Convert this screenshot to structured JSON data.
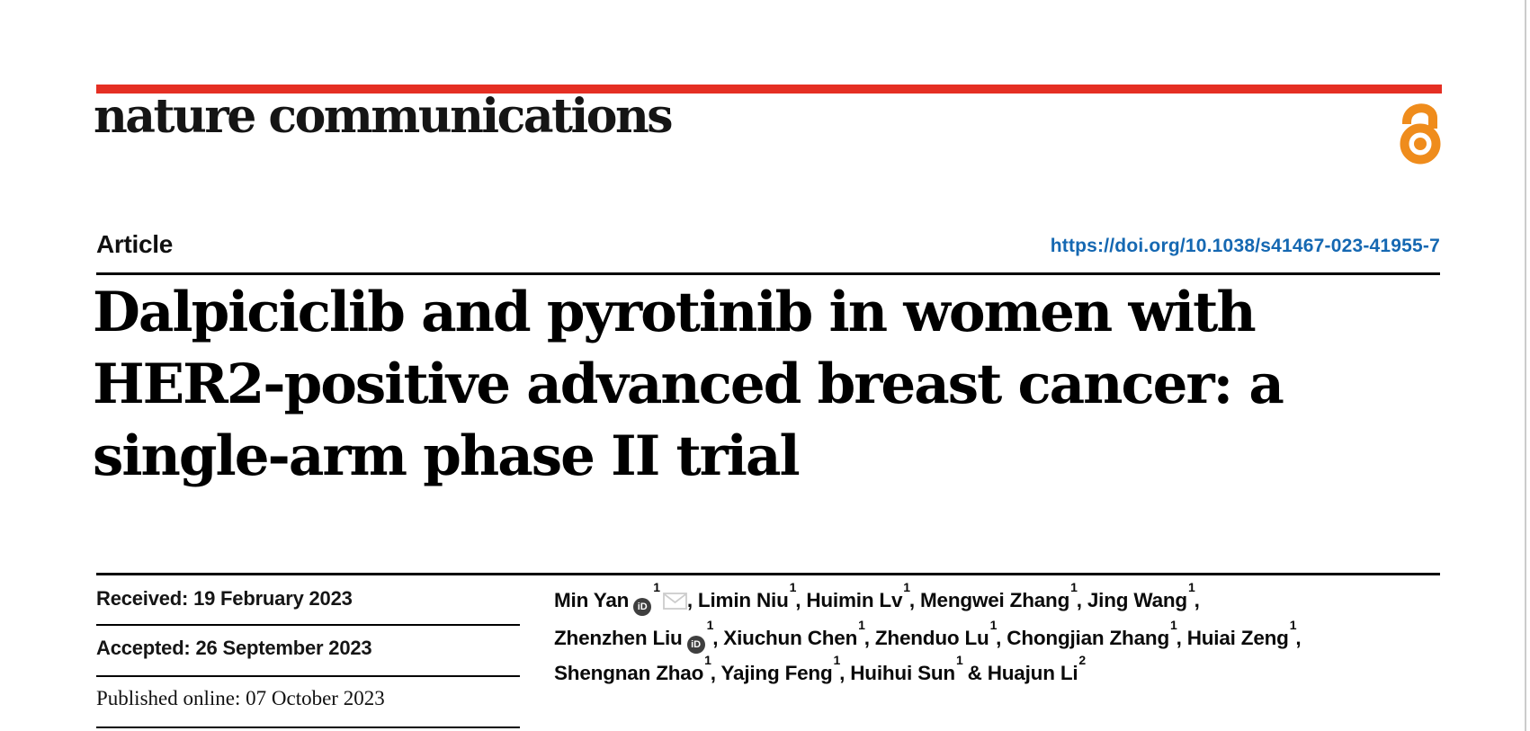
{
  "brand": {
    "journal_name": "nature communications",
    "red_bar_color": "#e52f23",
    "open_access_color": "#ef8c1c"
  },
  "header": {
    "article_type_label": "Article",
    "doi_link": "https://doi.org/10.1038/s41467-023-41955-7",
    "doi_color": "#1568b2"
  },
  "title": {
    "line1": "Dalpiciclib and pyrotinib in women with",
    "line2": "HER2-positive advanced breast cancer: a",
    "line3": "single-arm phase II trial"
  },
  "history": [
    {
      "label": "Received:",
      "date": "19 February 2023"
    },
    {
      "label": "Accepted:",
      "date": "26 September 2023"
    },
    {
      "label": "Published online:",
      "date": "07 October 2023"
    }
  ],
  "authors": {
    "separator": ", ",
    "last_separator": " & ",
    "orcid_icon_label": "iD",
    "list": [
      {
        "name": "Min Yan",
        "sup": "1",
        "orcid": true,
        "email": true
      },
      {
        "name": "Limin Niu",
        "sup": "1"
      },
      {
        "name": "Huimin Lv",
        "sup": "1"
      },
      {
        "name": "Mengwei Zhang",
        "sup": "1"
      },
      {
        "name": "Jing Wang",
        "sup": "1",
        "break_after": true
      },
      {
        "name": "Zhenzhen Liu",
        "sup": "1",
        "orcid": true
      },
      {
        "name": "Xiuchun Chen",
        "sup": "1"
      },
      {
        "name": "Zhenduo Lu",
        "sup": "1"
      },
      {
        "name": "Chongjian Zhang",
        "sup": "1"
      },
      {
        "name": "Huiai Zeng",
        "sup": "1",
        "break_after": true
      },
      {
        "name": "Shengnan Zhao",
        "sup": "1"
      },
      {
        "name": "Yajing Feng",
        "sup": "1"
      },
      {
        "name": "Huihui Sun",
        "sup": "1"
      },
      {
        "name": "Huajun Li",
        "sup": "2"
      }
    ]
  }
}
